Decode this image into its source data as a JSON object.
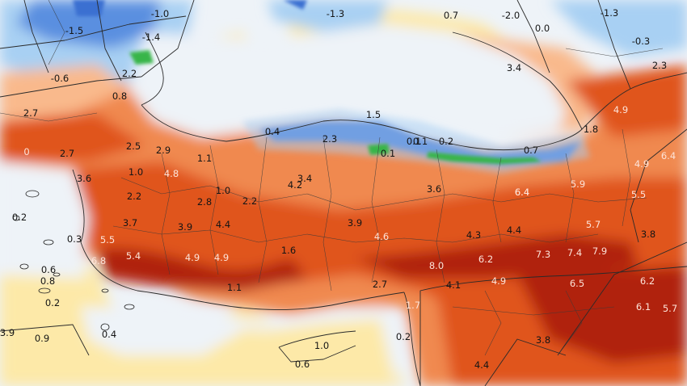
{
  "map": {
    "type": "temperature-anomaly map",
    "region": "Turkey and surroundings",
    "colors": {
      "sea_pale": "#eef3f8",
      "pale_yellow": "#fde9a8",
      "light_orange": "#f9b98c",
      "orange": "#f0894f",
      "red_orange": "#e0551e",
      "dark_red": "#b0210d",
      "blue": "#3b6fd1",
      "light_blue": "#a8d0f3",
      "green": "#39b54a",
      "borders": "#2a2a2a"
    },
    "labels": [
      "-1.0",
      "-1.3",
      "0.7",
      "-2.0",
      "-1.3",
      "-1.5",
      "-1.4",
      "0.0",
      "-0.3",
      "2.3",
      "-0.6",
      "2.2",
      "3.4",
      "0.8",
      "2.7",
      "1.5",
      "4.9",
      "0.4",
      "2.3",
      "0.1",
      "0.2",
      "1.8",
      "0",
      "2.7",
      "2.5",
      "2.9",
      "0.1",
      "1.1",
      "0.1",
      "0.7",
      "6.4",
      "1.0",
      "4.8",
      "3.6",
      "3.4",
      "4.2",
      "4.9",
      "6.4",
      "2.2",
      "1.0",
      "2.8",
      "2.2",
      "3.6",
      "6.4",
      "5.9",
      "5.5",
      "0.2",
      "3.7",
      "3.9",
      "4.4",
      "3.9",
      "4.6",
      "4.3",
      "4.4",
      "5.7",
      "3.8",
      "0.3",
      "5.5",
      "1.6",
      "5.4",
      "6.8",
      "4.9",
      "4.9",
      "6.2",
      "7.3",
      "7.4",
      "7.9",
      "8.0",
      "0.6",
      "0.8",
      "4.1",
      "4.9",
      "2.7",
      "6.5",
      "6.2",
      "1.1",
      "0.2",
      "6.1",
      "5.7",
      "0.9",
      "3.9",
      "0.4",
      "0.2",
      "3.8",
      "1.0",
      "1.7",
      "0.6",
      "4.4"
    ]
  }
}
